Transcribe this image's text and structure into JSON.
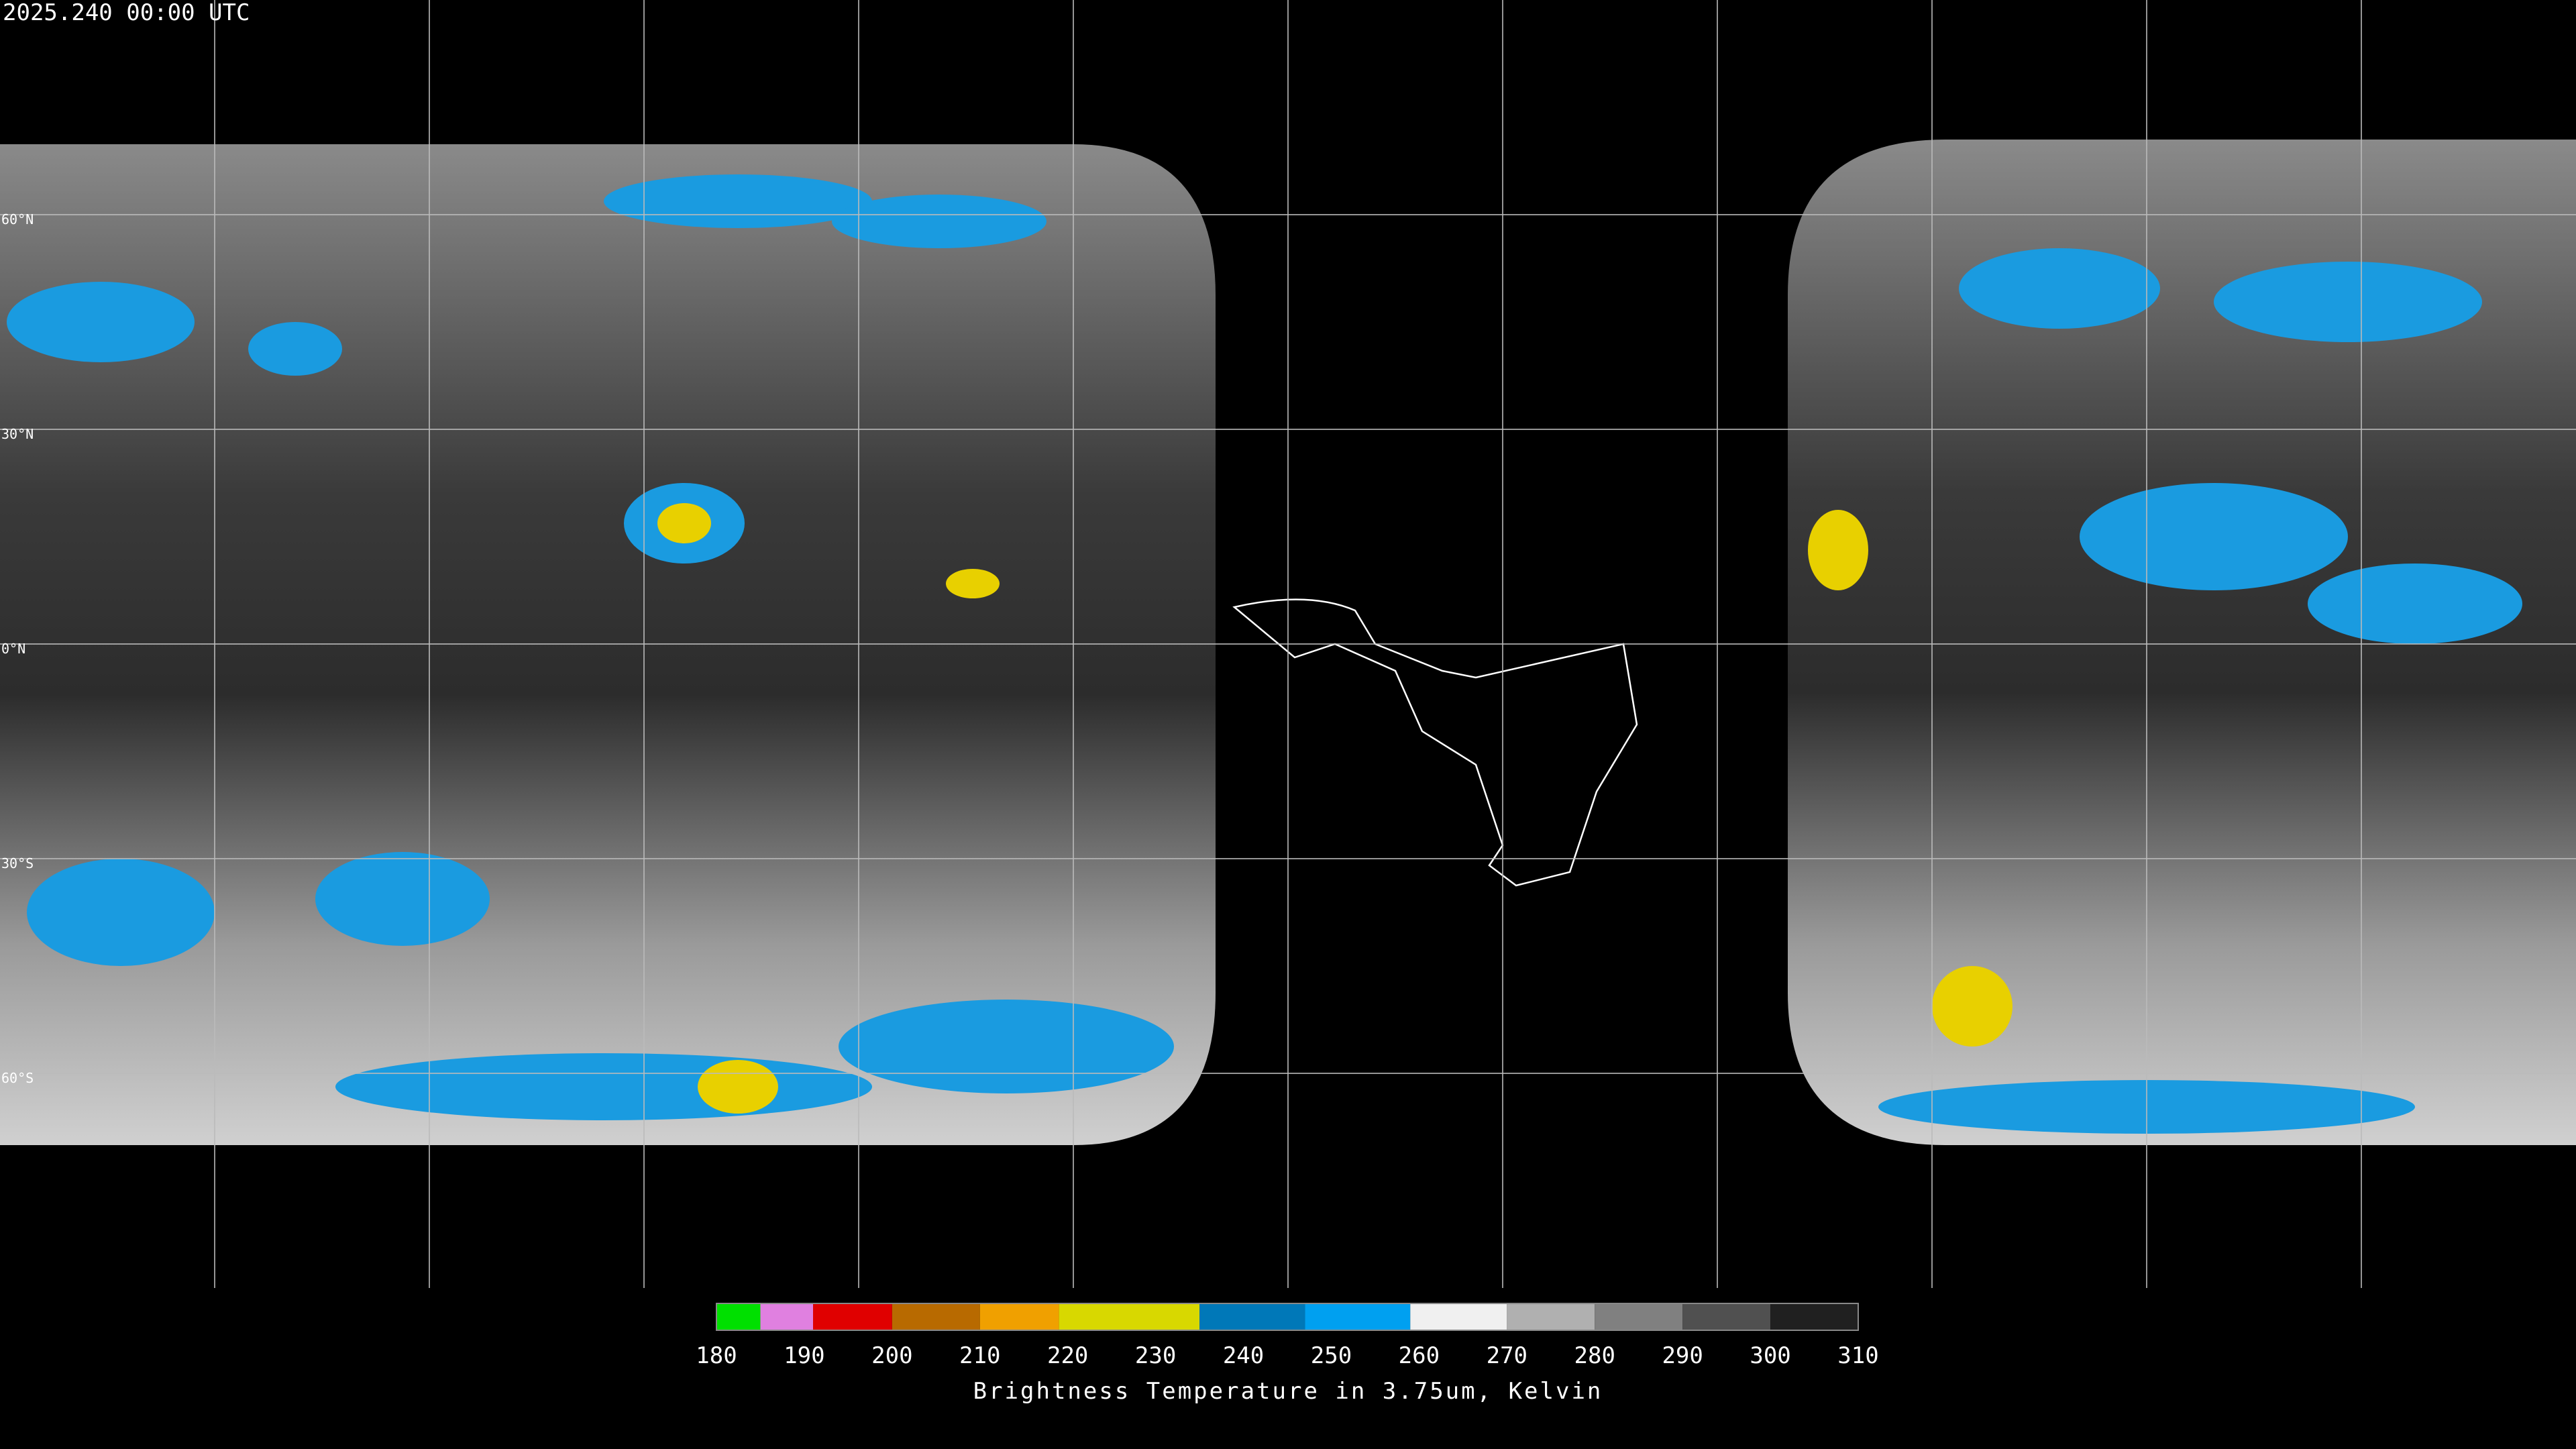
{
  "header": {
    "title": "2025.240 00:00 UTC"
  },
  "map": {
    "latitude_labels": [
      "60°N",
      "30°N",
      "0°N",
      "30°S",
      "60°S"
    ]
  },
  "colorbar": {
    "label": "Brightness Temperature in 3.75um, Kelvin",
    "ticks": [
      180,
      190,
      200,
      210,
      220,
      230,
      240,
      250,
      260,
      270,
      280,
      290,
      300,
      310
    ],
    "segments": [
      {
        "from": 180,
        "to": 185,
        "color": "#00e000"
      },
      {
        "from": 185,
        "to": 191,
        "color": "#e080e0"
      },
      {
        "from": 191,
        "to": 200,
        "color": "#e00000"
      },
      {
        "from": 200,
        "to": 210,
        "color": "#b86a00"
      },
      {
        "from": 210,
        "to": 219,
        "color": "#f0a000"
      },
      {
        "from": 219,
        "to": 235,
        "color": "#d8d800"
      },
      {
        "from": 235,
        "to": 247,
        "color": "#0078b8"
      },
      {
        "from": 247,
        "to": 259,
        "color": "#00a0f0"
      },
      {
        "from": 259,
        "to": 270,
        "color": "#f0f0f0"
      },
      {
        "from": 270,
        "to": 280,
        "color": "#b0b0b0"
      },
      {
        "from": 280,
        "to": 290,
        "color": "#808080"
      },
      {
        "from": 290,
        "to": 300,
        "color": "#505050"
      },
      {
        "from": 300,
        "to": 310,
        "color": "#202020"
      }
    ]
  }
}
